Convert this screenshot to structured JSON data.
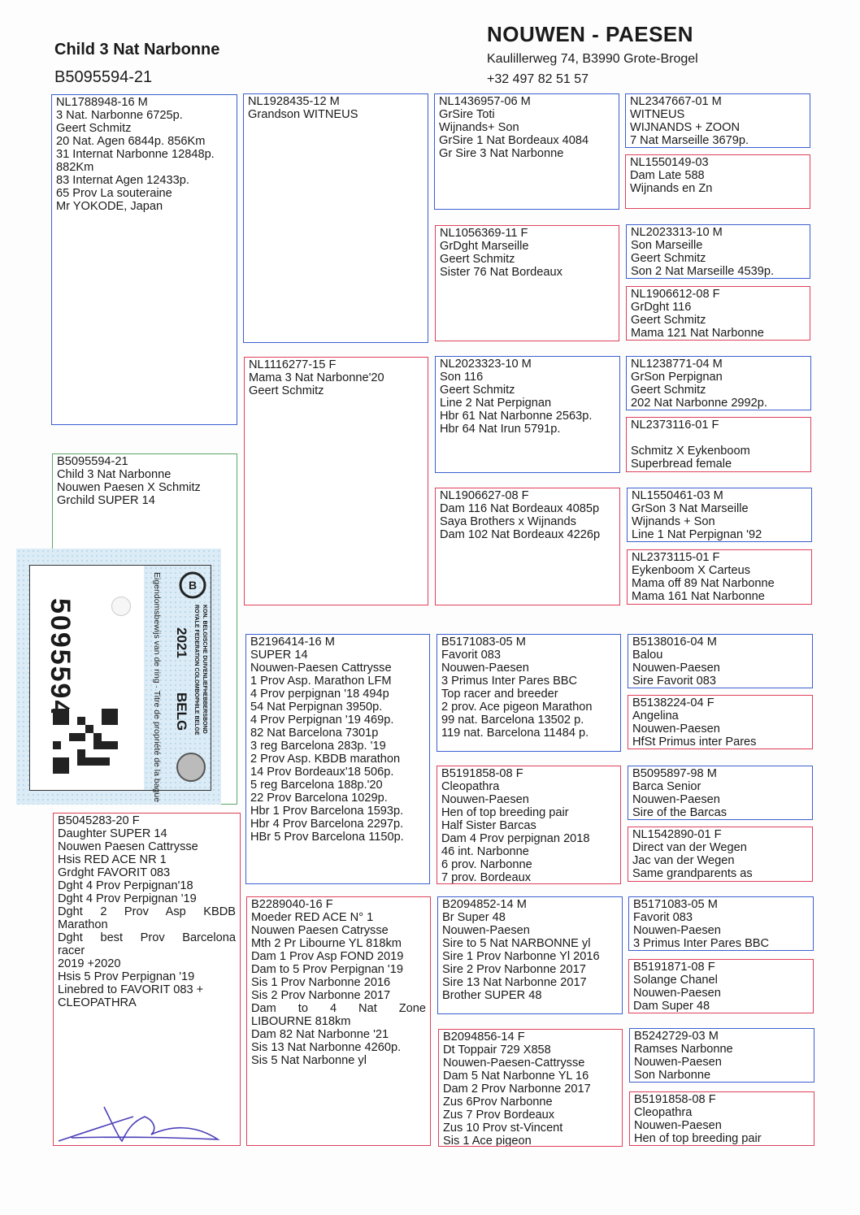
{
  "header": {
    "pigeon_title": "Child 3 Nat Narbonne",
    "pigeon_ring": "B5095594-21",
    "breeder_name": "NOUWEN - PAESEN",
    "address": "Kaulillerweg 74, B3990 Grote-Brogel",
    "phone": "+32 497 82 51 57"
  },
  "ring_card": {
    "number": "5095594",
    "federation_nl": "KON. BELGISCHE DUIVENLIEFHEBBERSBOND",
    "federation_fr": "ROYALE FEDERATION COLOMBOPHILE BELGE",
    "year": "2021",
    "country": "BELG",
    "title": "Eigendomsbewijs van de ring · Titre de propriété de la bague",
    "qr_icon": "qr-code-icon",
    "logo_icon": "federation-logo-icon"
  },
  "colors": {
    "male_border": "#3b5fd0",
    "female_border": "#e0405a",
    "subject_border": "#5aa86a"
  },
  "pedigree": {
    "subject": {
      "sex": "subject",
      "lines": [
        "B5095594-21",
        "Child 3 Nat Narbonne",
        "Nouwen Paesen X Schmitz",
        "Grchild SUPER 14"
      ]
    },
    "sire": {
      "sex": "M",
      "lines": [
        "NL1788948-16  M",
        "3 Nat. Narbonne 6725p.",
        "Geert Schmitz",
        "20 Nat. Agen 6844p. 856Km",
        "31 Internat Narbonne 12848p.",
        "882Km",
        "83 Internat Agen 12433p.",
        "65 Prov La souteraine",
        "Mr YOKODE, Japan"
      ]
    },
    "dam": {
      "sex": "F",
      "lines": [
        "B5045283-20  F",
        "Daughter SUPER 14",
        "Nouwen Paesen Cattrysse",
        "Hsis RED ACE NR 1",
        "Grdght FAVORIT 083",
        "Dght 4 Prov Perpignan'18",
        "Dght 4 Prov Perpignan '19",
        "Dght 2 Prov Asp KBDB",
        "Marathon",
        "Dght best Prov Barcelona",
        "racer",
        "2019 +2020",
        "Hsis 5 Prov Perpignan '19",
        "Linebred to FAVORIT 083 +",
        "CLEOPATHRA"
      ]
    },
    "gen2": [
      {
        "sex": "M",
        "lines": [
          "NL1928435-12  M",
          "Grandson WITNEUS"
        ]
      },
      {
        "sex": "F",
        "lines": [
          "NL1116277-15  F",
          "Mama 3 Nat Narbonne'20",
          "Geert Schmitz"
        ]
      },
      {
        "sex": "M",
        "lines": [
          "B2196414-16  M",
          "SUPER 14",
          "Nouwen-Paesen Cattrysse",
          "1 Prov Asp. Marathon LFM",
          "4 Prov perpignan '18 494p",
          "54 Nat Perpignan 3950p.",
          "4 Prov Perpignan '19 469p.",
          "82 Nat Barcelona 7301p",
          "3 reg Barcelona 283p. '19",
          "2 Prov Asp. KBDB marathon",
          "14 Prov Bordeaux'18 506p.",
          "5 reg Barcelona 188p.'20",
          "22 Prov Barcelona 1029p.",
          "Hbr 1 Prov Barcelona 1593p.",
          "Hbr 4 Prov Barcelona 2297p.",
          "HBr 5 Prov Barcelona 1150p."
        ]
      },
      {
        "sex": "F",
        "lines": [
          "B2289040-16  F",
          "Moeder RED ACE N° 1",
          "Nouwen Paesen Catrysse",
          "Mth 2 Pr Libourne YL 818km",
          "Dam 1 Prov Asp FOND 2019",
          "Dam to 5 Prov Perpignan '19",
          "Sis 1 Prov Narbonne 2016",
          "Sis 2 Prov Narbonne 2017",
          "Dam to 4 Nat Zone",
          "LIBOURNE 818km",
          "Dam 82 Nat Narbonne '21",
          "Sis 13 Nat Narbonne 4260p.",
          "Sis 5 Nat Narbonne yl"
        ]
      }
    ],
    "gen3": [
      {
        "sex": "M",
        "lines": [
          "NL1436957-06  M",
          "GrSire Toti",
          "Wijnands+ Son",
          "GrSire 1 Nat Bordeaux 4084",
          "Gr Sire 3 Nat Narbonne"
        ]
      },
      {
        "sex": "F",
        "lines": [
          "NL1056369-11  F",
          "GrDght Marseille",
          "Geert Schmitz",
          "Sister 76 Nat Bordeaux"
        ]
      },
      {
        "sex": "M",
        "lines": [
          "NL2023323-10  M",
          "Son 116",
          "Geert Schmitz",
          "Line 2 Nat Perpignan",
          "Hbr 61 Nat Narbonne 2563p.",
          "Hbr 64 Nat Irun 5791p."
        ]
      },
      {
        "sex": "F",
        "lines": [
          "NL1906627-08  F",
          "Dam 116 Nat Bordeaux 4085p",
          "Saya Brothers x Wijnands",
          "Dam 102 Nat Bordeaux 4226p"
        ]
      },
      {
        "sex": "M",
        "lines": [
          "B5171083-05  M",
          "Favorit 083",
          "Nouwen-Paesen",
          "3 Primus Inter Pares BBC",
          "Top racer and breeder",
          "2 prov. Ace pigeon Marathon",
          "99 nat. Barcelona 13502 p.",
          "119 nat. Barcelona 11484 p."
        ]
      },
      {
        "sex": "F",
        "lines": [
          "B5191858-08  F",
          "Cleopathra",
          "Nouwen-Paesen",
          "Hen of top breeding pair",
          "Half Sister Barcas",
          "Dam 4 Prov perpignan 2018",
          "46 int. Narbonne",
          "6 prov. Narbonne",
          "7 prov. Bordeaux"
        ]
      },
      {
        "sex": "M",
        "lines": [
          "B2094852-14  M",
          "Br Super 48",
          "Nouwen-Paesen",
          "Sire to 5 Nat NARBONNE yl",
          "Sire 1 Prov Narbonne Yl 2016",
          "Sire 2 Prov Narbonne 2017",
          "Sire 13 Nat Narbonne 2017",
          "Brother SUPER 48"
        ]
      },
      {
        "sex": "F",
        "lines": [
          "B2094856-14  F",
          "Dt Toppair 729 X858",
          "Nouwen-Paesen-Cattrysse",
          "Dam  5 Nat Narbonne YL 16",
          "Dam 2 Prov Narbonne 2017",
          "Zus 6Prov Narbonne",
          "Zus 7 Prov Bordeaux",
          "Zus 10 Prov st-Vincent",
          "Sis  1 Ace pigeon"
        ]
      }
    ],
    "gen4": [
      {
        "sex": "M",
        "lines": [
          "NL2347667-01  M",
          "WITNEUS",
          "WIJNANDS + ZOON",
          "7 Nat Marseille 3679p."
        ]
      },
      {
        "sex": "F",
        "lines": [
          "NL1550149-03",
          "Dam Late 588",
          "Wijnands en Zn"
        ]
      },
      {
        "sex": "M",
        "lines": [
          "NL2023313-10  M",
          "Son Marseille",
          "Geert Schmitz",
          "Son 2 Nat Marseille 4539p."
        ]
      },
      {
        "sex": "F",
        "lines": [
          "NL1906612-08  F",
          "GrDght 116",
          "Geert Schmitz",
          "Mama 121 Nat Narbonne"
        ]
      },
      {
        "sex": "M",
        "lines": [
          "NL1238771-04  M",
          "GrSon Perpignan",
          "Geert Schmitz",
          "202 Nat Narbonne 2992p."
        ]
      },
      {
        "sex": "F",
        "lines": [
          "NL2373116-01  F",
          "",
          "Schmitz X Eykenboom",
          "Superbread female"
        ]
      },
      {
        "sex": "M",
        "lines": [
          "NL1550461-03  M",
          "GrSon 3 Nat Marseille",
          "Wijnands + Son",
          "Line 1 Nat Perpignan '92"
        ]
      },
      {
        "sex": "F",
        "lines": [
          "NL2373115-01  F",
          "Eykenboom X Carteus",
          "Mama off 89 Nat Narbonne",
          "Mama 161 Nat Narbonne"
        ]
      },
      {
        "sex": "M",
        "lines": [
          "B5138016-04  M",
          "Balou",
          "Nouwen-Paesen",
          "Sire Favorit 083"
        ]
      },
      {
        "sex": "F",
        "lines": [
          "B5138224-04  F",
          "Angelina",
          "Nouwen-Paesen",
          "HfSt Primus inter Pares"
        ]
      },
      {
        "sex": "M",
        "lines": [
          "B5095897-98  M",
          "Barca Senior",
          "Nouwen-Paesen",
          "Sire of the Barcas"
        ]
      },
      {
        "sex": "F",
        "lines": [
          "NL1542890-01  F",
          "Direct van der Wegen",
          "Jac van der Wegen",
          "Same grandparents as"
        ]
      },
      {
        "sex": "M",
        "lines": [
          "B5171083-05  M",
          "Favorit 083",
          "Nouwen-Paesen",
          "3 Primus Inter Pares BBC"
        ]
      },
      {
        "sex": "F",
        "lines": [
          "B5191871-08  F",
          "Solange Chanel",
          "Nouwen-Paesen",
          "Dam Super 48"
        ]
      },
      {
        "sex": "M",
        "lines": [
          "B5242729-03  M",
          "Ramses Narbonne",
          "Nouwen-Paesen",
          "Son Narbonne"
        ]
      },
      {
        "sex": "F",
        "lines": [
          "B5191858-08  F",
          "Cleopathra",
          "Nouwen-Paesen",
          "Hen of top breeding pair"
        ]
      }
    ]
  }
}
